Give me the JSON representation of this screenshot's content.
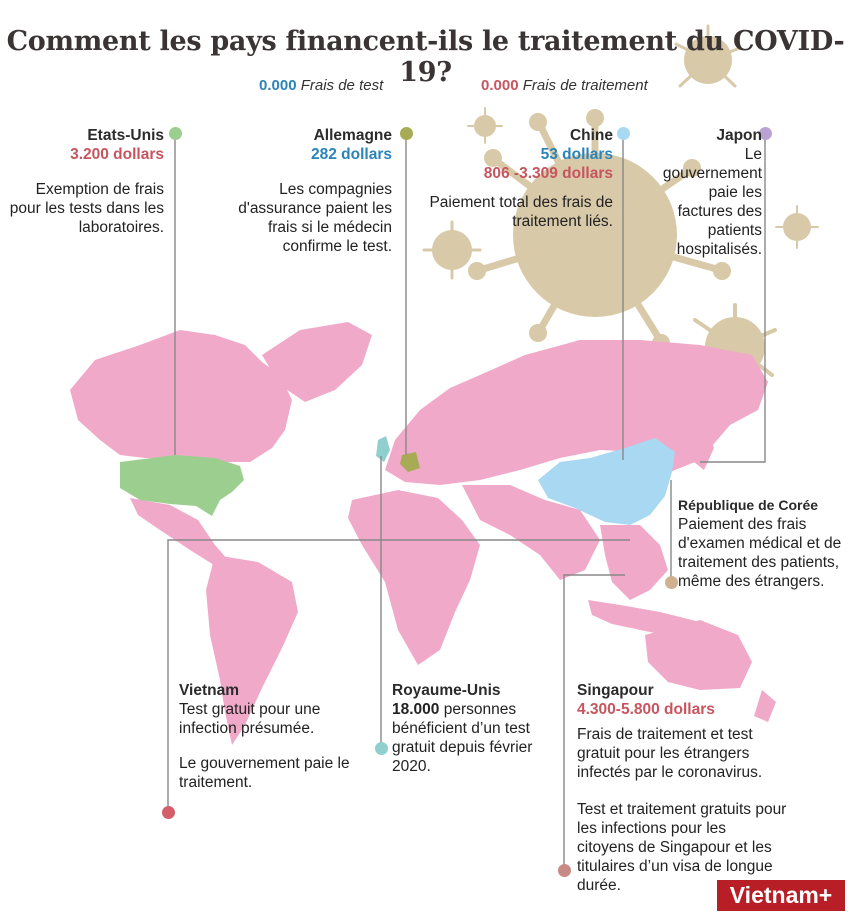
{
  "title": "Comment les pays financent-ils le traitement du COVID-19?",
  "legend": {
    "test": {
      "value": "0.000",
      "label": "Frais de test",
      "color": "#2b84b8"
    },
    "treatment": {
      "value": "0.000",
      "label": "Frais de traitement",
      "color": "#c6555f"
    }
  },
  "colors": {
    "map": "#f0a9c8",
    "usa": "#9ccf8f",
    "germany": "#a8ab55",
    "uk": "#8fd0cf",
    "china": "#a9d8f2",
    "virus": "#d8c9a8",
    "dot_japan": "#b9a2d4",
    "dot_korea": "#cfb090",
    "dot_vietnam": "#d25f6a",
    "dot_singapore": "#c98a86"
  },
  "countries": {
    "usa": {
      "name": "Etats-Unis",
      "cost": "3.200 dollars",
      "desc": "Exemption de frais pour les tests dans les laboratoires."
    },
    "germany": {
      "name": "Allemagne",
      "cost": "282 dollars",
      "desc": "Les compagnies d'assurance paient les frais si le médecin confirme le test."
    },
    "china": {
      "name": "Chine",
      "test_cost": "53 dollars",
      "treat_cost": "806 -3.309 dollars",
      "desc": "Paiement total des frais de traitement liés."
    },
    "japan": {
      "name": "Japon",
      "desc": "Le gouvernement paie les factures des patients hospitalisés."
    },
    "korea": {
      "name": "République de Corée",
      "desc": "Paiement des frais d'examen médical et de traitement des patients, même des étrangers."
    },
    "vietnam": {
      "name": "Vietnam",
      "desc1": "Test gratuit pour une infection présumée.",
      "desc2": "Le gouvernement paie le traitement."
    },
    "uk": {
      "name": "Royaume-Unis",
      "highlight": "18.000",
      "desc": "personnes bénéficient d’un test gratuit depuis février 2020."
    },
    "singapore": {
      "name": "Singapour",
      "cost": "4.300-5.800 dollars",
      "desc1": "Frais de traitement et test gratuit pour les étrangers infectés par le coronavirus.",
      "desc2": "Test et traitement gratuits pour les infections pour les citoyens de Singapour et les titulaires d’un visa de longue durée."
    }
  },
  "logo": "Vietnam+"
}
